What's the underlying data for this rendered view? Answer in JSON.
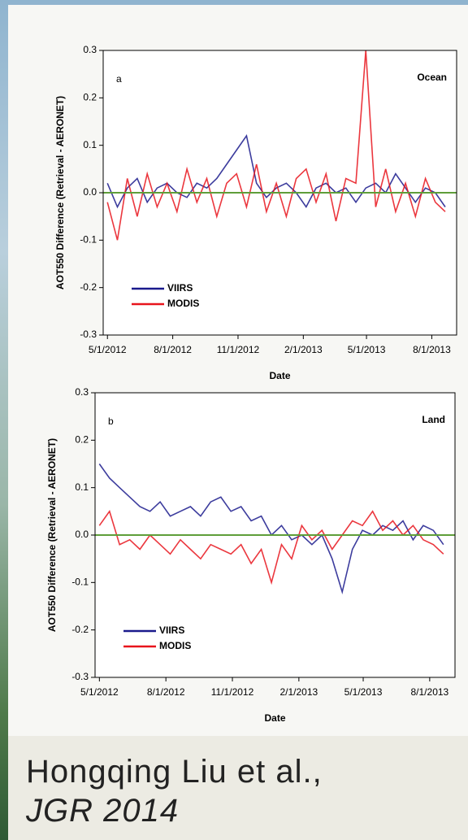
{
  "chart_data": [
    {
      "type": "line",
      "panel_label": "a",
      "annotation": "Ocean",
      "x_label": "Date",
      "y_label": "AOT550 Difference (Retrieval - AERONET)",
      "x": [
        "2012-05-01",
        "2012-05-15",
        "2012-05-29",
        "2012-06-12",
        "2012-06-26",
        "2012-07-10",
        "2012-07-24",
        "2012-08-07",
        "2012-08-21",
        "2012-09-04",
        "2012-09-18",
        "2012-10-02",
        "2012-10-16",
        "2012-10-30",
        "2012-11-13",
        "2012-11-27",
        "2012-12-11",
        "2012-12-25",
        "2013-01-08",
        "2013-01-22",
        "2013-02-05",
        "2013-02-19",
        "2013-03-05",
        "2013-03-19",
        "2013-04-02",
        "2013-04-16",
        "2013-04-30",
        "2013-05-14",
        "2013-05-28",
        "2013-06-11",
        "2013-06-25",
        "2013-07-09",
        "2013-07-23",
        "2013-08-06",
        "2013-08-20"
      ],
      "series": [
        {
          "name": "VIIRS",
          "color": "#1a1a8c",
          "values": [
            0.02,
            -0.03,
            0.01,
            0.03,
            -0.02,
            0.01,
            0.02,
            0.0,
            -0.01,
            0.02,
            0.01,
            0.03,
            0.06,
            0.09,
            0.12,
            0.02,
            -0.01,
            0.01,
            0.02,
            0.0,
            -0.03,
            0.01,
            0.02,
            0.0,
            0.01,
            -0.02,
            0.01,
            0.02,
            0.0,
            0.04,
            0.01,
            -0.02,
            0.01,
            0.0,
            -0.03
          ]
        },
        {
          "name": "MODIS",
          "color": "#e8141c",
          "values": [
            -0.02,
            -0.1,
            0.03,
            -0.05,
            0.04,
            -0.03,
            0.02,
            -0.04,
            0.05,
            -0.02,
            0.03,
            -0.05,
            0.02,
            0.04,
            -0.03,
            0.06,
            -0.04,
            0.02,
            -0.05,
            0.03,
            0.05,
            -0.02,
            0.04,
            -0.06,
            0.03,
            0.02,
            0.3,
            -0.03,
            0.05,
            -0.04,
            0.02,
            -0.05,
            0.03,
            -0.02,
            -0.04
          ]
        }
      ],
      "xlim": [
        "2012-04-25",
        "2013-09-05"
      ],
      "xticks": [
        {
          "value": "2012-05-01",
          "label": "5/1/2012"
        },
        {
          "value": "2012-08-01",
          "label": "8/1/2012"
        },
        {
          "value": "2012-11-01",
          "label": "11/1/2012"
        },
        {
          "value": "2013-02-01",
          "label": "2/1/2013"
        },
        {
          "value": "2013-05-01",
          "label": "5/1/2013"
        },
        {
          "value": "2013-08-01",
          "label": "8/1/2013"
        }
      ],
      "ylim": [
        -0.3,
        0.3
      ],
      "yticks": [
        -0.3,
        -0.2,
        -0.1,
        {
          "value": 0,
          "label": "0.0"
        },
        0.1,
        0.2,
        0.3
      ],
      "reference_line": {
        "value": 0,
        "color": "#5f9e3a"
      },
      "legend": "lower left"
    },
    {
      "type": "line",
      "panel_label": "b",
      "annotation": "Land",
      "x_label": "Date",
      "y_label": "AOT550 Difference (Retrieval - AERONET)",
      "x": [
        "2012-05-01",
        "2012-05-15",
        "2012-05-29",
        "2012-06-12",
        "2012-06-26",
        "2012-07-10",
        "2012-07-24",
        "2012-08-07",
        "2012-08-21",
        "2012-09-04",
        "2012-09-18",
        "2012-10-02",
        "2012-10-16",
        "2012-10-30",
        "2012-11-13",
        "2012-11-27",
        "2012-12-11",
        "2012-12-25",
        "2013-01-08",
        "2013-01-22",
        "2013-02-05",
        "2013-02-19",
        "2013-03-05",
        "2013-03-19",
        "2013-04-02",
        "2013-04-16",
        "2013-04-30",
        "2013-05-14",
        "2013-05-28",
        "2013-06-11",
        "2013-06-25",
        "2013-07-09",
        "2013-07-23",
        "2013-08-06",
        "2013-08-20"
      ],
      "series": [
        {
          "name": "VIIRS",
          "color": "#1a1a8c",
          "values": [
            0.15,
            0.12,
            0.1,
            0.08,
            0.06,
            0.05,
            0.07,
            0.04,
            0.05,
            0.06,
            0.04,
            0.07,
            0.08,
            0.05,
            0.06,
            0.03,
            0.04,
            0.0,
            0.02,
            -0.01,
            0.0,
            -0.02,
            0.0,
            -0.05,
            -0.12,
            -0.03,
            0.01,
            0.0,
            0.02,
            0.01,
            0.03,
            -0.01,
            0.02,
            0.01,
            -0.02
          ]
        },
        {
          "name": "MODIS",
          "color": "#e8141c",
          "values": [
            0.02,
            0.05,
            -0.02,
            -0.01,
            -0.03,
            0.0,
            -0.02,
            -0.04,
            -0.01,
            -0.03,
            -0.05,
            -0.02,
            -0.03,
            -0.04,
            -0.02,
            -0.06,
            -0.03,
            -0.1,
            -0.02,
            -0.05,
            0.02,
            -0.01,
            0.01,
            -0.03,
            0.0,
            0.03,
            0.02,
            0.05,
            0.01,
            0.03,
            0.0,
            0.02,
            -0.01,
            -0.02,
            -0.04
          ]
        }
      ],
      "xlim": [
        "2012-04-25",
        "2013-09-05"
      ],
      "xticks": [
        {
          "value": "2012-05-01",
          "label": "5/1/2012"
        },
        {
          "value": "2012-08-01",
          "label": "8/1/2012"
        },
        {
          "value": "2012-11-01",
          "label": "11/1/2012"
        },
        {
          "value": "2013-02-01",
          "label": "2/1/2013"
        },
        {
          "value": "2013-05-01",
          "label": "5/1/2013"
        },
        {
          "value": "2013-08-01",
          "label": "8/1/2013"
        }
      ],
      "ylim": [
        -0.3,
        0.3
      ],
      "yticks": [
        -0.3,
        -0.2,
        -0.1,
        {
          "value": 0,
          "label": "0.0"
        },
        0.1,
        0.2,
        0.3
      ],
      "reference_line": {
        "value": 0,
        "color": "#5f9e3a"
      },
      "legend": "lower left"
    }
  ],
  "caption": {
    "author": "Hongqing Liu et al.,",
    "source": "JGR 2014"
  }
}
